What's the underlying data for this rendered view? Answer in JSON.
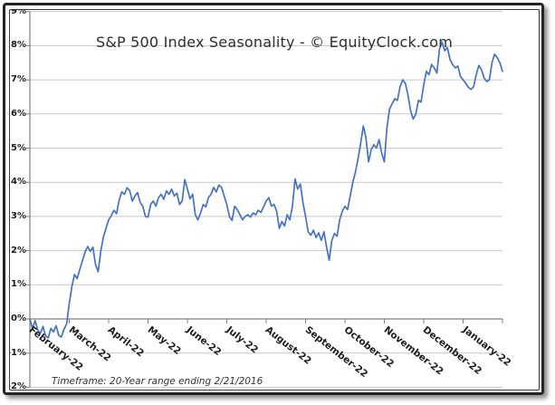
{
  "chart_data": {
    "type": "line",
    "title": "S&P 500 Index Seasonality - © EquityClock.com",
    "footnote": "Timeframe: 20-Year range ending 2/21/2016",
    "x_note": "one seasonal year of daily values, evenly spaced from February through January",
    "x_tick_labels": [
      "February-22",
      "March-22",
      "April-22",
      "May-22",
      "June-22",
      "July-22",
      "August-22",
      "September-22",
      "October-22",
      "November-22",
      "December-22",
      "January-22"
    ],
    "y_tick_labels": [
      "9%",
      "8%",
      "7%",
      "6%",
      "5%",
      "4%",
      "3%",
      "2%",
      "1%",
      "0%",
      "-1%",
      "-2%"
    ],
    "ylim": [
      -2,
      9
    ],
    "y_unit": "%",
    "gridlines": "horizontal, every 1%",
    "legend": "none",
    "axis_color": "#808080",
    "gridline_color": "#c8c8c8",
    "series": [
      {
        "name": "S&P 500 Index Seasonality",
        "color": "#4472C4",
        "values": [
          0.0,
          -0.28,
          -0.05,
          -0.33,
          -0.42,
          -0.22,
          -0.5,
          -0.55,
          -0.28,
          -0.38,
          -0.2,
          -0.48,
          -0.53,
          -0.3,
          -0.15,
          0.45,
          0.95,
          1.3,
          1.18,
          1.45,
          1.7,
          1.95,
          2.12,
          1.98,
          2.1,
          1.6,
          1.38,
          1.98,
          2.4,
          2.65,
          2.9,
          3.02,
          3.18,
          3.08,
          3.48,
          3.72,
          3.65,
          3.84,
          3.76,
          3.45,
          3.6,
          3.7,
          3.41,
          3.3,
          3.0,
          2.98,
          3.35,
          3.45,
          3.3,
          3.55,
          3.65,
          3.5,
          3.75,
          3.65,
          3.8,
          3.6,
          3.68,
          3.35,
          3.45,
          4.08,
          3.8,
          3.52,
          3.65,
          3.05,
          2.9,
          3.1,
          3.35,
          3.28,
          3.55,
          3.65,
          3.85,
          3.72,
          3.92,
          3.85,
          3.6,
          3.35,
          3.0,
          2.88,
          3.3,
          3.2,
          3.05,
          2.9,
          3.0,
          3.05,
          2.98,
          3.1,
          3.05,
          3.18,
          3.12,
          3.28,
          3.45,
          3.55,
          3.3,
          3.35,
          3.15,
          2.65,
          2.85,
          2.72,
          3.05,
          2.9,
          3.3,
          4.1,
          3.8,
          3.95,
          3.4,
          3.0,
          2.55,
          2.45,
          2.6,
          2.38,
          2.52,
          2.3,
          2.55,
          2.1,
          1.72,
          2.3,
          2.5,
          2.42,
          2.9,
          3.15,
          3.3,
          3.2,
          3.6,
          4.0,
          4.3,
          4.7,
          5.15,
          5.65,
          5.3,
          4.6,
          4.95,
          5.1,
          5.0,
          5.25,
          4.85,
          4.6,
          5.6,
          6.15,
          6.3,
          6.45,
          6.4,
          6.8,
          7.0,
          6.9,
          6.55,
          6.1,
          5.85,
          6.0,
          6.4,
          6.35,
          6.85,
          7.25,
          7.15,
          7.45,
          7.35,
          7.2,
          7.9,
          8.1,
          7.85,
          7.95,
          7.6,
          7.45,
          7.35,
          7.4,
          7.1,
          7.0,
          6.9,
          6.78,
          6.72,
          6.8,
          7.15,
          7.42,
          7.3,
          7.05,
          6.95,
          7.0,
          7.5,
          7.75,
          7.65,
          7.5,
          7.25
        ]
      }
    ]
  }
}
